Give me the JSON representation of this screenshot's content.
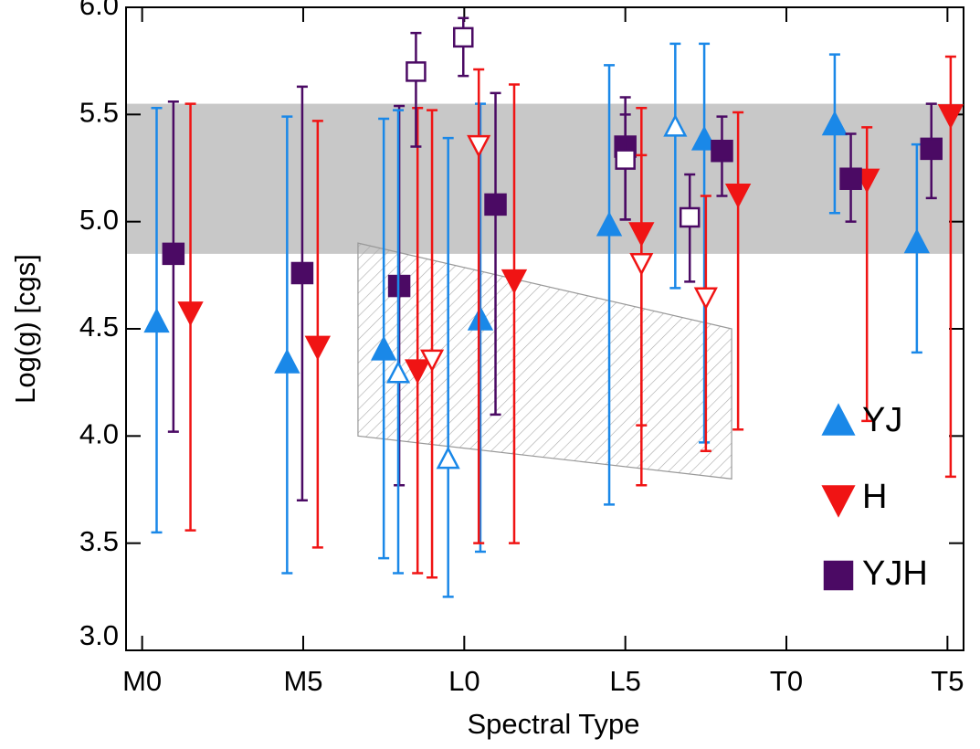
{
  "chart_data": {
    "type": "scatter",
    "xlabel": "Spectral Type",
    "ylabel": "Log(g) [cgs]",
    "xlim": [
      -0.5,
      25.5
    ],
    "ylim": [
      3.0,
      6.0
    ],
    "xticks": [
      {
        "value": 0,
        "label": "M0"
      },
      {
        "value": 5,
        "label": "M5"
      },
      {
        "value": 10,
        "label": "L0"
      },
      {
        "value": 15,
        "label": "L5"
      },
      {
        "value": 20,
        "label": "T0"
      },
      {
        "value": 25,
        "label": "T5"
      }
    ],
    "yticks": [
      {
        "value": 3.0,
        "label": "3.0"
      },
      {
        "value": 3.5,
        "label": "3.5"
      },
      {
        "value": 4.0,
        "label": "4.0"
      },
      {
        "value": 4.5,
        "label": "4.5"
      },
      {
        "value": 5.0,
        "label": "5.0"
      },
      {
        "value": 5.5,
        "label": "5.5"
      },
      {
        "value": 6.0,
        "label": "6.0"
      }
    ],
    "band": [
      4.85,
      5.55
    ],
    "band_color": "#c8c8c8",
    "hatch_region": {
      "x": [
        6.7,
        18.3,
        18.3,
        6.7
      ],
      "y": [
        4.9,
        4.5,
        3.8,
        4.0
      ]
    },
    "legend": "lower right",
    "series": [
      {
        "name": "YJ",
        "color": "#1a88e8",
        "marker": "up",
        "filled": true,
        "x": [
          0.45,
          4.5,
          7.5,
          10.5,
          14.5,
          17.45,
          21.5,
          24.05
        ],
        "values": [
          4.53,
          4.34,
          4.4,
          4.54,
          4.98,
          5.38,
          5.45,
          4.9
        ],
        "err_minus": [
          0.98,
          0.98,
          0.97,
          1.08,
          1.3,
          1.41,
          0.41,
          0.51
        ],
        "err_plus": [
          1.0,
          1.15,
          1.08,
          1.01,
          0.75,
          0.45,
          0.33,
          0.46
        ]
      },
      {
        "name": "H",
        "color": "#f01414",
        "marker": "down",
        "filled": true,
        "x": [
          1.5,
          5.45,
          8.55,
          11.55,
          15.5,
          18.5,
          22.5,
          25.1
        ],
        "values": [
          4.58,
          4.42,
          4.31,
          4.73,
          4.95,
          5.13,
          5.2,
          5.5
        ],
        "err_minus": [
          1.02,
          0.94,
          0.95,
          1.23,
          1.18,
          1.1,
          1.13,
          1.69
        ],
        "err_plus": [
          0.97,
          1.05,
          1.22,
          0.91,
          0.58,
          0.38,
          0.24,
          0.27
        ]
      },
      {
        "name": "YJH",
        "color": "#4b0a64",
        "marker": "square",
        "filled": true,
        "x": [
          0.97,
          4.97,
          7.98,
          10.97,
          15.0,
          18.0,
          22.0,
          24.5
        ],
        "values": [
          4.85,
          4.76,
          4.7,
          5.08,
          5.35,
          5.33,
          5.2,
          5.34
        ],
        "err_minus": [
          0.83,
          1.06,
          0.93,
          0.98,
          0.34,
          0.21,
          0.2,
          0.23
        ],
        "err_plus": [
          0.71,
          0.87,
          0.84,
          0.52,
          0.23,
          0.16,
          0.21,
          0.21
        ]
      },
      {
        "color": "#1a88e8",
        "marker": "up",
        "filled": false,
        "x": [
          7.95,
          9.5,
          16.55
        ],
        "values": [
          4.29,
          3.89,
          5.44
        ],
        "err_minus": [
          0.93,
          0.64,
          0.75
        ],
        "err_plus": [
          1.23,
          1.5,
          0.39
        ]
      },
      {
        "color": "#f01414",
        "marker": "down",
        "filled": false,
        "x": [
          9.0,
          10.45,
          15.5,
          17.5
        ],
        "values": [
          4.36,
          5.36,
          4.81,
          4.65
        ],
        "err_minus": [
          1.02,
          1.86,
          0.76,
          0.72
        ],
        "err_plus": [
          1.16,
          0.35,
          0.5,
          0.47
        ]
      },
      {
        "color": "#4b0a64",
        "marker": "square",
        "filled": false,
        "x": [
          8.5,
          9.97,
          15.0,
          17.0
        ],
        "values": [
          5.7,
          5.86,
          5.29,
          5.02
        ],
        "err_minus": [
          0.35,
          0.18,
          0.28,
          0.3
        ],
        "err_plus": [
          0.18,
          0.09,
          0.21,
          0.2
        ]
      }
    ]
  }
}
